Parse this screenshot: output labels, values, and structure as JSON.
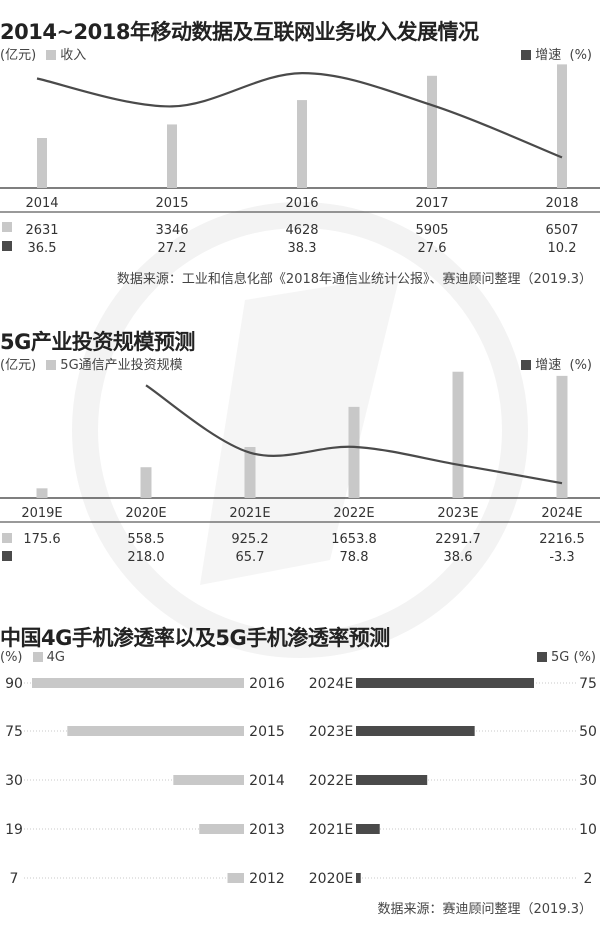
{
  "watermark": "circle-logo-watermark",
  "colors": {
    "bar": "#c8c8c8",
    "dark": "#4a4a4a",
    "line": "#4a4a4a",
    "axis": "#333333"
  },
  "source_label_1": "数据来源：工业和信息化部《2018年通信业统计公报》、赛迪顾问整理（2019.3）",
  "source_label_3": "数据来源：赛迪顾问整理（2019.3）",
  "chart_data": [
    {
      "type": "bar",
      "title": "2014~2018年移动数据及互联网业务收入发展情况",
      "ylabel": "(亿元)",
      "ylabel_right": "(%)",
      "categories": [
        "2014",
        "2015",
        "2016",
        "2017",
        "2018"
      ],
      "series": [
        {
          "name": "收入",
          "kind": "bar",
          "values": [
            2631,
            3346,
            4628,
            5905,
            6507
          ],
          "labels": [
            "2631",
            "3346",
            "4628",
            "5905",
            "6507"
          ]
        },
        {
          "name": "增速",
          "kind": "line",
          "values": [
            36.5,
            27.2,
            38.3,
            27.6,
            10.2
          ],
          "labels": [
            "36.5",
            "27.2",
            "38.3",
            "27.6",
            "10.2"
          ]
        }
      ],
      "ylim": [
        0,
        7000
      ],
      "ylim_right": [
        0,
        42
      ],
      "grid": false,
      "legend_position": "top"
    },
    {
      "type": "bar",
      "title": "5G产业投资规模预测",
      "ylabel": "(亿元)",
      "ylabel_right": "(%)",
      "categories": [
        "2019E",
        "2020E",
        "2021E",
        "2022E",
        "2023E",
        "2024E"
      ],
      "series": [
        {
          "name": "5G通信产业投资规模",
          "kind": "bar",
          "values": [
            175.6,
            558.5,
            925.2,
            1653.8,
            2291.7,
            2216.5
          ],
          "labels": [
            "175.6",
            "558.5",
            "925.2",
            "1653.8",
            "2291.7",
            "2216.5"
          ]
        },
        {
          "name": "增速",
          "kind": "line",
          "values": [
            null,
            218.0,
            65.7,
            78.8,
            38.6,
            -3.3
          ],
          "labels": [
            "",
            "218.0",
            "65.7",
            "78.8",
            "38.6",
            "-3.3"
          ]
        }
      ],
      "ylim": [
        0,
        2450
      ],
      "ylim_right": [
        -30,
        230
      ],
      "grid": false,
      "legend_position": "top"
    },
    {
      "type": "bar",
      "title": "中国4G手机渗透率以及5G手机渗透率预测",
      "unit": "(%)",
      "left": {
        "name": "4G",
        "rows": [
          {
            "year": "2016",
            "value": 90,
            "label": "90"
          },
          {
            "year": "2015",
            "value": 75,
            "label": "75"
          },
          {
            "year": "2014",
            "value": 30,
            "label": "30"
          },
          {
            "year": "2013",
            "value": 19,
            "label": "19"
          },
          {
            "year": "2012",
            "value": 7,
            "label": "7"
          }
        ]
      },
      "right": {
        "name": "5G",
        "unit_label": "(%)",
        "rows": [
          {
            "year": "2024E",
            "value": 75,
            "label": "75"
          },
          {
            "year": "2023E",
            "value": 50,
            "label": "50"
          },
          {
            "year": "2022E",
            "value": 30,
            "label": "30"
          },
          {
            "year": "2021E",
            "value": 10,
            "label": "10"
          },
          {
            "year": "2020E",
            "value": 2,
            "label": "2"
          }
        ]
      },
      "xlim": [
        0,
        100
      ],
      "grid": false
    }
  ]
}
